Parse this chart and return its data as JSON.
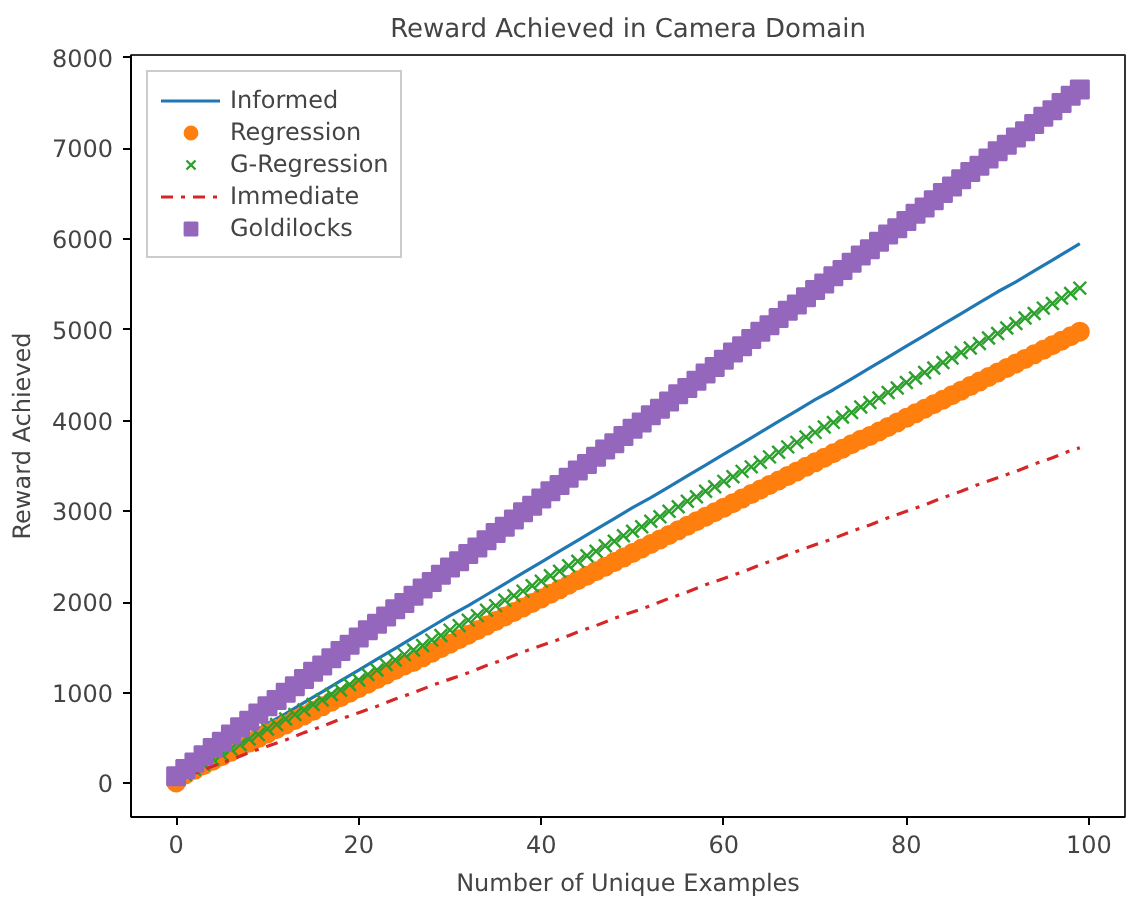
{
  "chart_data": {
    "type": "line",
    "title": "Reward Achieved in Camera Domain",
    "xlabel": "Number of Unique Examples",
    "ylabel": "Reward Achieved",
    "xlim": [
      -4.95,
      103.95
    ],
    "ylim": [
      -370,
      8030
    ],
    "xticks": [
      0,
      20,
      40,
      60,
      80,
      100
    ],
    "yticks": [
      0,
      1000,
      2000,
      3000,
      4000,
      5000,
      6000,
      7000,
      8000
    ],
    "grid": false,
    "legend": "top left",
    "x": [
      0,
      1,
      2,
      3,
      4,
      5,
      6,
      7,
      8,
      9,
      10,
      11,
      12,
      13,
      14,
      15,
      16,
      17,
      18,
      19,
      20,
      21,
      22,
      23,
      24,
      25,
      26,
      27,
      28,
      29,
      30,
      31,
      32,
      33,
      34,
      35,
      36,
      37,
      38,
      39,
      40,
      41,
      42,
      43,
      44,
      45,
      46,
      47,
      48,
      49,
      50,
      51,
      52,
      53,
      54,
      55,
      56,
      57,
      58,
      59,
      60,
      61,
      62,
      63,
      64,
      65,
      66,
      67,
      68,
      69,
      70,
      71,
      72,
      73,
      74,
      75,
      76,
      77,
      78,
      79,
      80,
      81,
      82,
      83,
      84,
      85,
      86,
      87,
      88,
      89,
      90,
      91,
      92,
      93,
      94,
      95,
      96,
      97,
      98,
      99
    ],
    "series": [
      {
        "name": "Informed",
        "color": "#1f77b4",
        "line_style": "solid",
        "marker": "none",
        "x": [
          6,
          8,
          10,
          12,
          14,
          16,
          18,
          20,
          22,
          24,
          26,
          28,
          30,
          32,
          34,
          36,
          38,
          40,
          42,
          44,
          46,
          48,
          50,
          52,
          54,
          56,
          58,
          60,
          62,
          64,
          66,
          68,
          70,
          72,
          74,
          76,
          78,
          80,
          82,
          84,
          86,
          88,
          90,
          92,
          94,
          96,
          98,
          99
        ],
        "values": [
          420,
          540,
          660,
          770,
          890,
          1010,
          1130,
          1250,
          1370,
          1490,
          1610,
          1730,
          1850,
          1960,
          2080,
          2200,
          2320,
          2440,
          2560,
          2680,
          2800,
          2920,
          3040,
          3150,
          3270,
          3390,
          3510,
          3630,
          3750,
          3870,
          3990,
          4110,
          4230,
          4340,
          4460,
          4580,
          4700,
          4820,
          4940,
          5060,
          5180,
          5300,
          5420,
          5530,
          5650,
          5770,
          5890,
          5950
        ]
      },
      {
        "name": "Regression",
        "type": "scatter",
        "color": "#ff7f0e",
        "marker": "circle",
        "values": [
          10,
          100,
          150,
          200,
          250,
          300,
          350,
          400,
          450,
          500,
          550,
          600,
          650,
          700,
          750,
          800,
          850,
          900,
          950,
          1000,
          1050,
          1100,
          1150,
          1200,
          1250,
          1300,
          1340,
          1390,
          1440,
          1490,
          1540,
          1590,
          1640,
          1690,
          1740,
          1790,
          1840,
          1890,
          1940,
          1990,
          2040,
          2090,
          2140,
          2190,
          2240,
          2290,
          2340,
          2390,
          2440,
          2490,
          2540,
          2590,
          2640,
          2690,
          2740,
          2790,
          2840,
          2890,
          2940,
          2990,
          3040,
          3090,
          3140,
          3190,
          3240,
          3290,
          3340,
          3390,
          3440,
          3490,
          3540,
          3590,
          3640,
          3690,
          3740,
          3790,
          3830,
          3880,
          3930,
          3980,
          4030,
          4080,
          4130,
          4180,
          4230,
          4280,
          4330,
          4380,
          4430,
          4480,
          4530,
          4580,
          4630,
          4680,
          4730,
          4780,
          4830,
          4880,
          4930,
          4980
        ]
      },
      {
        "name": "G-Regression",
        "type": "scatter",
        "color": "#2ca02c",
        "marker": "cross",
        "values": [
          null,
          100,
          160,
          210,
          270,
          320,
          380,
          430,
          490,
          540,
          600,
          650,
          710,
          760,
          810,
          870,
          920,
          980,
          1030,
          1090,
          1140,
          1200,
          1250,
          1310,
          1360,
          1420,
          1470,
          1520,
          1580,
          1630,
          1690,
          1740,
          1800,
          1850,
          1910,
          1960,
          2020,
          2070,
          2120,
          2180,
          2230,
          2290,
          2340,
          2400,
          2450,
          2510,
          2560,
          2620,
          2670,
          2730,
          2780,
          2830,
          2890,
          2940,
          3000,
          3050,
          3110,
          3160,
          3220,
          3270,
          3330,
          3380,
          3440,
          3490,
          3540,
          3600,
          3650,
          3710,
          3760,
          3820,
          3870,
          3930,
          3980,
          4040,
          4090,
          4150,
          4200,
          4250,
          4310,
          4360,
          4420,
          4470,
          4530,
          4580,
          4640,
          4690,
          4750,
          4800,
          4850,
          4910,
          4960,
          5020,
          5070,
          5130,
          5180,
          5240,
          5290,
          5350,
          5400,
          5460
        ]
      },
      {
        "name": "Immediate",
        "color": "#d62728",
        "line_style": "dashdot",
        "marker": "none",
        "x": [
          0,
          2,
          4,
          6,
          8,
          10,
          12,
          14,
          16,
          18,
          20,
          22,
          24,
          26,
          28,
          30,
          32,
          34,
          36,
          38,
          40,
          42,
          44,
          46,
          48,
          50,
          52,
          54,
          56,
          58,
          60,
          62,
          64,
          66,
          68,
          70,
          72,
          74,
          76,
          78,
          80,
          82,
          84,
          86,
          88,
          90,
          92,
          94,
          96,
          98,
          99
        ],
        "values": [
          40,
          110,
          190,
          260,
          340,
          410,
          480,
          560,
          630,
          710,
          780,
          850,
          930,
          1000,
          1080,
          1150,
          1220,
          1300,
          1370,
          1450,
          1520,
          1590,
          1670,
          1740,
          1820,
          1890,
          1960,
          2040,
          2110,
          2190,
          2260,
          2330,
          2410,
          2480,
          2560,
          2630,
          2700,
          2780,
          2850,
          2930,
          3000,
          3070,
          3150,
          3220,
          3300,
          3370,
          3440,
          3520,
          3590,
          3670,
          3700
        ]
      },
      {
        "name": "Goldilocks",
        "type": "scatter",
        "color": "#9467bd",
        "marker": "square",
        "values": [
          80,
          160,
          230,
          310,
          390,
          460,
          540,
          620,
          690,
          770,
          850,
          920,
          1000,
          1070,
          1150,
          1230,
          1300,
          1380,
          1460,
          1530,
          1610,
          1690,
          1760,
          1840,
          1920,
          1990,
          2070,
          2150,
          2220,
          2300,
          2380,
          2450,
          2530,
          2600,
          2680,
          2760,
          2830,
          2910,
          2990,
          3060,
          3140,
          3220,
          3290,
          3370,
          3450,
          3520,
          3600,
          3680,
          3750,
          3830,
          3910,
          3980,
          4060,
          4130,
          4210,
          4290,
          4360,
          4440,
          4520,
          4590,
          4670,
          4750,
          4820,
          4900,
          4980,
          5050,
          5130,
          5210,
          5280,
          5360,
          5440,
          5510,
          5590,
          5660,
          5740,
          5820,
          5890,
          5970,
          6050,
          6120,
          6200,
          6280,
          6350,
          6430,
          6510,
          6580,
          6660,
          6740,
          6810,
          6890,
          6970,
          7040,
          7120,
          7190,
          7270,
          7350,
          7420,
          7500,
          7580,
          7650
        ]
      }
    ]
  }
}
